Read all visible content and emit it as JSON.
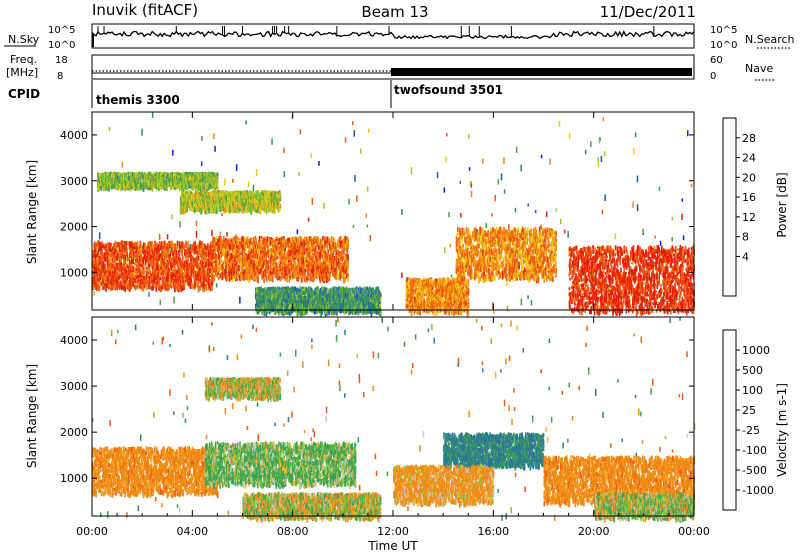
{
  "header": {
    "station": "Inuvik (fitACF)",
    "beam": "Beam 13",
    "date": "11/Dec/2011"
  },
  "ancillary": {
    "nsky_label": "N.Sky",
    "nsearch_label": "N.Search",
    "nsky_ticks": [
      "10^5",
      "10^0"
    ],
    "nsearch_ticks": [
      "10^5",
      "10^0"
    ],
    "freq_label_1": "Freq.",
    "freq_label_2": "[MHz]",
    "freq_ticks": [
      "18",
      "8"
    ],
    "nave_label": "Nave",
    "nave_ticks": [
      "60",
      "0"
    ],
    "cpid_label": "CPID",
    "cpid_1": "themis 3300",
    "cpid_2": "twofsound 3501"
  },
  "axes": {
    "x_label": "Time UT",
    "x_ticks": [
      "00:00",
      "04:00",
      "08:00",
      "12:00",
      "16:00",
      "20:00",
      "00:00"
    ],
    "y_label": "Slant Range [km]",
    "y_ticks": [
      "4000",
      "3000",
      "2000",
      "1000"
    ]
  },
  "colorbars": {
    "power": {
      "label": "Power [dB]",
      "ticks": [
        "28",
        "24",
        "20",
        "16",
        "12",
        "8",
        "4"
      ],
      "colors": [
        "#0a1ef0",
        "#1e5ab4",
        "#2d8c6e",
        "#4ba542",
        "#a0c82d",
        "#f0c814",
        "#f08c14",
        "#f05a0f",
        "#e61e0a"
      ]
    },
    "velocity": {
      "label": "Velocity [m s-1]",
      "ticks": [
        "1000",
        "500",
        "100",
        "25",
        "-25",
        "-100",
        "-500",
        "-1000"
      ],
      "colors": [
        "#e61e0a",
        "#f05a0f",
        "#f08c14",
        "#f0b43c",
        "#c8c8c8",
        "#7ac83c",
        "#3ca550",
        "#2d7896",
        "#1e3cc8"
      ]
    }
  },
  "chart_data": [
    {
      "type": "heatmap",
      "title": "Power",
      "xlabel": "Time UT",
      "ylabel": "Slant Range [km]",
      "xlim": [
        0,
        24
      ],
      "ylim": [
        180,
        4500
      ],
      "colorbar": "Power [dB]",
      "clim": [
        0,
        30
      ],
      "regions": [
        {
          "t": [
            0.0,
            4.8
          ],
          "r": [
            700,
            1700
          ],
          "value": 26
        },
        {
          "t": [
            4.8,
            10.2
          ],
          "r": [
            900,
            1800
          ],
          "value": 24
        },
        {
          "t": [
            0.2,
            5.0
          ],
          "r": [
            2900,
            3200
          ],
          "value": 14
        },
        {
          "t": [
            3.5,
            7.5
          ],
          "r": [
            2400,
            2800
          ],
          "value": 16
        },
        {
          "t": [
            6.5,
            11.5
          ],
          "r": [
            180,
            700
          ],
          "value": 10
        },
        {
          "t": [
            12.5,
            15.0
          ],
          "r": [
            180,
            900
          ],
          "value": 22
        },
        {
          "t": [
            14.5,
            18.5
          ],
          "r": [
            900,
            2000
          ],
          "value": 22
        },
        {
          "t": [
            19.0,
            24.0
          ],
          "r": [
            180,
            1600
          ],
          "value": 28
        }
      ]
    },
    {
      "type": "heatmap",
      "title": "Velocity",
      "xlabel": "Time UT",
      "ylabel": "Slant Range [km]",
      "xlim": [
        0,
        24
      ],
      "ylim": [
        180,
        4500
      ],
      "colorbar": "Velocity [m s-1]",
      "clim": [
        -1000,
        1000
      ],
      "regions": [
        {
          "t": [
            0.0,
            5.0
          ],
          "r": [
            700,
            1700
          ],
          "value": -300
        },
        {
          "t": [
            4.5,
            10.5
          ],
          "r": [
            900,
            1800
          ],
          "value": 150
        },
        {
          "t": [
            4.5,
            7.5
          ],
          "r": [
            2800,
            3200
          ],
          "value": 0
        },
        {
          "t": [
            6.0,
            11.5
          ],
          "r": [
            180,
            700
          ],
          "value": 0
        },
        {
          "t": [
            14.0,
            18.0
          ],
          "r": [
            1300,
            2000
          ],
          "value": 600
        },
        {
          "t": [
            12.0,
            16.0
          ],
          "r": [
            500,
            1300
          ],
          "value": -200
        },
        {
          "t": [
            18.0,
            24.0
          ],
          "r": [
            500,
            1500
          ],
          "value": -300
        },
        {
          "t": [
            20.0,
            24.0
          ],
          "r": [
            180,
            700
          ],
          "value": 50
        }
      ]
    }
  ]
}
